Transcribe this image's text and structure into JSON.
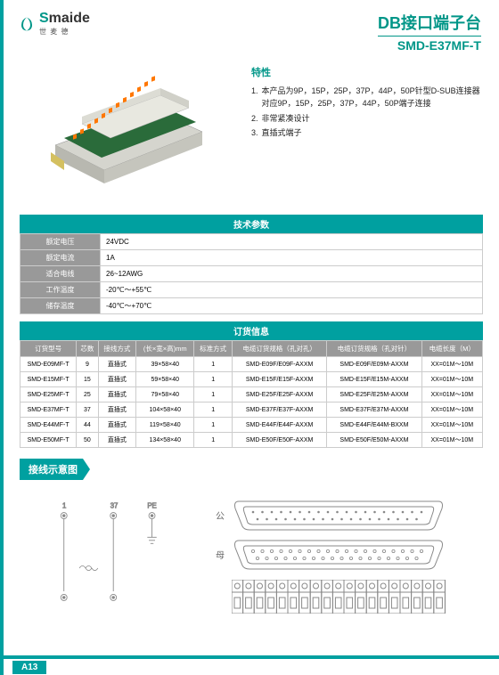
{
  "logo": {
    "brand": "maide",
    "sub": "世 麦 德"
  },
  "title": {
    "main": "DB接口端子台",
    "sub": "SMD-E37MF-T"
  },
  "features": {
    "heading": "特性",
    "items": [
      "本产品为9P，15P，25P，37P，44P，50P针型D-SUB连接器对应9P，15P，25P，37P，44P，50P端子连接",
      "非常紧凑设计",
      "直插式端子"
    ]
  },
  "spec": {
    "heading": "技术参数",
    "rows": [
      {
        "label": "额定电压",
        "value": "24VDC"
      },
      {
        "label": "额定电流",
        "value": "1A"
      },
      {
        "label": "适合电线",
        "value": "26~12AWG"
      },
      {
        "label": "工作温度",
        "value": "-20℃～+55℃"
      },
      {
        "label": "储存温度",
        "value": "-40℃～+70℃"
      }
    ]
  },
  "order": {
    "heading": "订货信息",
    "columns": [
      "订货型号",
      "芯数",
      "接线方式",
      "(长×宽×高)mm",
      "标准方式",
      "电缆订货规格（孔对孔）",
      "电缆订货规格（孔对针）",
      "电缆长度（M）"
    ],
    "rows": [
      [
        "SMD-E09MF-T",
        "9",
        "直插式",
        "39×58×40",
        "1",
        "SMD-E09F/E09F-AXXM",
        "SMD-E09F/E09M-AXXM",
        "XX=01M～10M"
      ],
      [
        "SMD-E15MF-T",
        "15",
        "直插式",
        "59×58×40",
        "1",
        "SMD-E15F/E15F-AXXM",
        "SMD-E15F/E15M-AXXM",
        "XX=01M～10M"
      ],
      [
        "SMD-E25MF-T",
        "25",
        "直插式",
        "79×58×40",
        "1",
        "SMD-E25F/E25F-AXXM",
        "SMD-E25F/E25M-AXXM",
        "XX=01M～10M"
      ],
      [
        "SMD-E37MF-T",
        "37",
        "直插式",
        "104×58×40",
        "1",
        "SMD-E37F/E37F-AXXM",
        "SMD-E37F/E37M-AXXM",
        "XX=01M～10M"
      ],
      [
        "SMD-E44MF-T",
        "44",
        "直插式",
        "119×58×40",
        "1",
        "SMD-E44F/E44F-AXXM",
        "SMD-E44F/E44M-BXXM",
        "XX=01M～10M"
      ],
      [
        "SMD-E50MF-T",
        "50",
        "直插式",
        "134×58×40",
        "1",
        "SMD-E50F/E50F-AXXM",
        "SMD-E50F/E50M-AXXM",
        "XX=01M～10M"
      ]
    ]
  },
  "diagram": {
    "label": "接线示意图",
    "wiring": {
      "pin1": "1",
      "pin37": "37",
      "pe": "PE"
    },
    "conn_labels": {
      "male": "公",
      "female": "母"
    }
  },
  "page": "A13",
  "colors": {
    "teal": "#00a0a0",
    "grey": "#999999"
  }
}
